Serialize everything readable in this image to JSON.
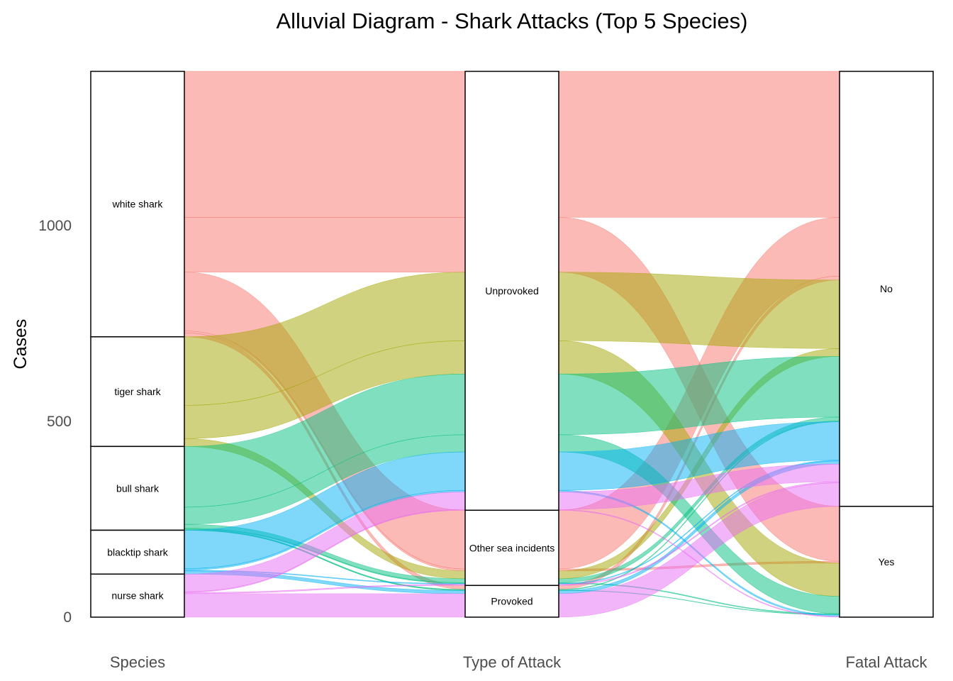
{
  "chart_data": {
    "type": "alluvial",
    "title": "Alluvial Diagram - Shark Attacks (Top 5 Species)",
    "ylabel": "Cases",
    "ylim": [
      0,
      1395
    ],
    "yticks": [
      0,
      500,
      1000
    ],
    "axes": [
      "Species",
      "Type of Attack",
      "Fatal Attack"
    ],
    "strata": [
      [
        "white shark",
        "tiger shark",
        "bull shark",
        "blacktip shark",
        "nurse shark"
      ],
      [
        "Unprovoked",
        "Other sea incidents",
        "Provoked"
      ],
      [
        "No",
        "Yes"
      ]
    ],
    "colors": {
      "white shark": "#F8766D",
      "tiger shark": "#A3A500",
      "bull shark": "#00BF7D",
      "blacktip shark": "#00B0F6",
      "nurse shark": "#E76BF3"
    },
    "flows": [
      {
        "species": "white shark",
        "attack": "Unprovoked",
        "fatal": "No",
        "n": 373
      },
      {
        "species": "white shark",
        "attack": "Unprovoked",
        "fatal": "Yes",
        "n": 140
      },
      {
        "species": "white shark",
        "attack": "Other sea incidents",
        "fatal": "No",
        "n": 150
      },
      {
        "species": "white shark",
        "attack": "Other sea incidents",
        "fatal": "Yes",
        "n": 5
      },
      {
        "species": "white shark",
        "attack": "Provoked",
        "fatal": "No",
        "n": 10
      },
      {
        "species": "white shark",
        "attack": "Provoked",
        "fatal": "Yes",
        "n": 0
      },
      {
        "species": "tiger shark",
        "attack": "Unprovoked",
        "fatal": "No",
        "n": 175
      },
      {
        "species": "tiger shark",
        "attack": "Unprovoked",
        "fatal": "Yes",
        "n": 85
      },
      {
        "species": "tiger shark",
        "attack": "Other sea incidents",
        "fatal": "No",
        "n": 20
      },
      {
        "species": "tiger shark",
        "attack": "Other sea incidents",
        "fatal": "Yes",
        "n": 0
      },
      {
        "species": "tiger shark",
        "attack": "Provoked",
        "fatal": "No",
        "n": 0
      },
      {
        "species": "tiger shark",
        "attack": "Provoked",
        "fatal": "Yes",
        "n": 0
      },
      {
        "species": "bull shark",
        "attack": "Unprovoked",
        "fatal": "No",
        "n": 155
      },
      {
        "species": "bull shark",
        "attack": "Unprovoked",
        "fatal": "Yes",
        "n": 44
      },
      {
        "species": "bull shark",
        "attack": "Other sea incidents",
        "fatal": "No",
        "n": 10
      },
      {
        "species": "bull shark",
        "attack": "Other sea incidents",
        "fatal": "Yes",
        "n": 2
      },
      {
        "species": "bull shark",
        "attack": "Provoked",
        "fatal": "No",
        "n": 2
      },
      {
        "species": "bull shark",
        "attack": "Provoked",
        "fatal": "Yes",
        "n": 1
      },
      {
        "species": "blacktip shark",
        "attack": "Unprovoked",
        "fatal": "No",
        "n": 98
      },
      {
        "species": "blacktip shark",
        "attack": "Unprovoked",
        "fatal": "Yes",
        "n": 4
      },
      {
        "species": "blacktip shark",
        "attack": "Other sea incidents",
        "fatal": "No",
        "n": 2
      },
      {
        "species": "blacktip shark",
        "attack": "Other sea incidents",
        "fatal": "Yes",
        "n": 0
      },
      {
        "species": "blacktip shark",
        "attack": "Provoked",
        "fatal": "No",
        "n": 8
      },
      {
        "species": "blacktip shark",
        "attack": "Provoked",
        "fatal": "Yes",
        "n": 0
      },
      {
        "species": "nurse shark",
        "attack": "Unprovoked",
        "fatal": "No",
        "n": 45
      },
      {
        "species": "nurse shark",
        "attack": "Unprovoked",
        "fatal": "Yes",
        "n": 2
      },
      {
        "species": "nurse shark",
        "attack": "Other sea incidents",
        "fatal": "No",
        "n": 3
      },
      {
        "species": "nurse shark",
        "attack": "Other sea incidents",
        "fatal": "Yes",
        "n": 0
      },
      {
        "species": "nurse shark",
        "attack": "Provoked",
        "fatal": "No",
        "n": 60
      },
      {
        "species": "nurse shark",
        "attack": "Provoked",
        "fatal": "Yes",
        "n": 0
      }
    ]
  }
}
